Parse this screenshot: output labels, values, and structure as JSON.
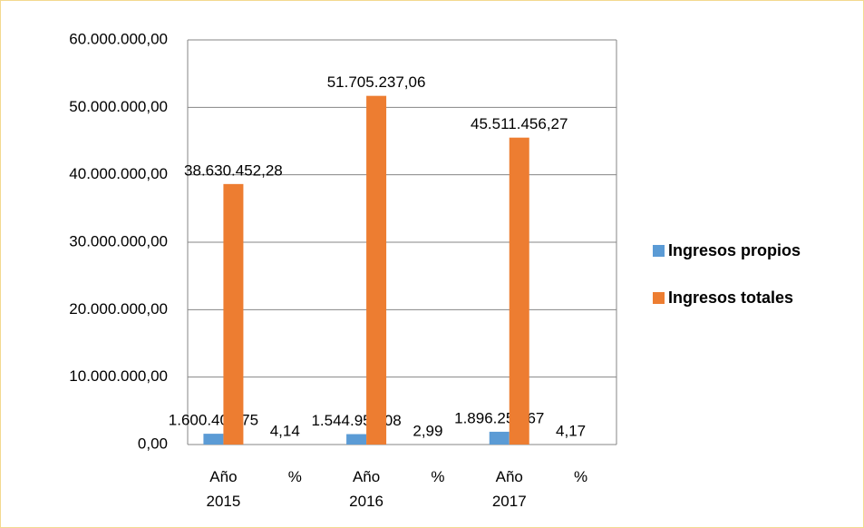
{
  "chart_data": {
    "type": "bar",
    "categories": [
      "Año 2015",
      "%",
      "Año 2016",
      "%",
      "Año 2017",
      "%"
    ],
    "series": [
      {
        "name": "Ingresos propios",
        "color": "#5b9bd5",
        "values": [
          1600409.75,
          4.14,
          1544950.08,
          2.99,
          1896259.67,
          4.17
        ],
        "value_labels": [
          "1.600.409,75",
          "4,14",
          "1.544.950,08",
          "2,99",
          "1.896.259,67",
          "4,17"
        ]
      },
      {
        "name": "Ingresos totales",
        "color": "#ed7d31",
        "values": [
          38630452.28,
          null,
          51705237.06,
          null,
          45511456.27,
          null
        ],
        "value_labels": [
          "38.630.452,28",
          null,
          "51.705.237,06",
          null,
          "45.511.456,27",
          null
        ]
      }
    ],
    "ylim": [
      0,
      60000000
    ],
    "yticks": [
      {
        "value": 0,
        "label": "0,00"
      },
      {
        "value": 10000000,
        "label": "10.000.000,00"
      },
      {
        "value": 20000000,
        "label": "20.000.000,00"
      },
      {
        "value": 30000000,
        "label": "30.000.000,00"
      },
      {
        "value": 40000000,
        "label": "40.000.000,00"
      },
      {
        "value": 50000000,
        "label": "50.000.000,00"
      },
      {
        "value": 60000000,
        "label": "60.000.000,00"
      }
    ],
    "grid": true,
    "legend": "right"
  }
}
